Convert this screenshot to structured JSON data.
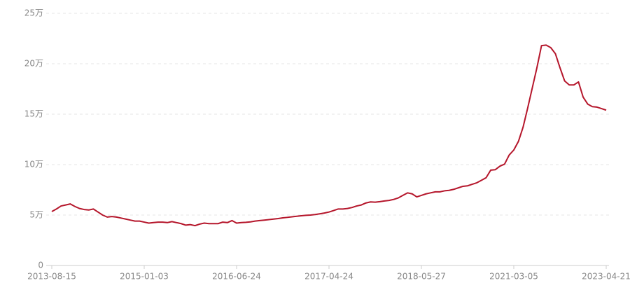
{
  "chart_data": {
    "type": "line",
    "categories": [
      "2013-08-15",
      null,
      null,
      null,
      null,
      null,
      null,
      null,
      null,
      null,
      null,
      null,
      null,
      null,
      null,
      null,
      null,
      null,
      null,
      null,
      "2015-01-03",
      null,
      null,
      null,
      null,
      null,
      null,
      null,
      null,
      null,
      null,
      null,
      null,
      null,
      null,
      null,
      null,
      null,
      null,
      null,
      "2016-06-24",
      null,
      null,
      null,
      null,
      null,
      null,
      null,
      null,
      null,
      null,
      null,
      null,
      null,
      null,
      null,
      null,
      null,
      null,
      null,
      "2017-04-24",
      null,
      null,
      null,
      null,
      null,
      null,
      null,
      null,
      null,
      null,
      null,
      null,
      null,
      null,
      null,
      null,
      null,
      null,
      null,
      "2018-05-27",
      null,
      null,
      null,
      null,
      null,
      null,
      null,
      null,
      null,
      null,
      null,
      null,
      null,
      null,
      null,
      null,
      null,
      null,
      null,
      "2021-03-05",
      null,
      null,
      null,
      null,
      null,
      null,
      null,
      null,
      null,
      null,
      null,
      null,
      null,
      null,
      null,
      null,
      null,
      null,
      null,
      "2023-04-21"
    ],
    "series": [
      {
        "color": "#b5162b",
        "values": [
          5.35,
          5.6,
          5.9,
          6.0,
          6.1,
          5.85,
          5.65,
          5.55,
          5.5,
          5.6,
          5.3,
          5.0,
          4.8,
          4.85,
          4.8,
          4.7,
          4.6,
          4.5,
          4.4,
          4.4,
          4.3,
          4.2,
          4.25,
          4.3,
          4.3,
          4.25,
          4.35,
          4.25,
          4.15,
          4.0,
          4.05,
          3.95,
          4.1,
          4.2,
          4.15,
          4.15,
          4.15,
          4.3,
          4.25,
          4.45,
          4.2,
          4.25,
          4.28,
          4.32,
          4.4,
          4.45,
          4.5,
          4.55,
          4.6,
          4.65,
          4.72,
          4.77,
          4.83,
          4.88,
          4.93,
          4.97,
          5.0,
          5.05,
          5.12,
          5.2,
          5.3,
          5.45,
          5.6,
          5.6,
          5.65,
          5.75,
          5.9,
          6.0,
          6.2,
          6.3,
          6.28,
          6.33,
          6.4,
          6.45,
          6.55,
          6.7,
          6.95,
          7.2,
          7.1,
          6.8,
          6.95,
          7.1,
          7.2,
          7.3,
          7.3,
          7.4,
          7.45,
          7.55,
          7.7,
          7.85,
          7.9,
          8.05,
          8.2,
          8.45,
          8.7,
          9.45,
          9.5,
          9.85,
          10.05,
          10.95,
          11.45,
          12.3,
          13.7,
          15.6,
          17.6,
          19.6,
          21.8,
          21.85,
          21.6,
          21.0,
          19.6,
          18.3,
          17.9,
          17.9,
          18.2,
          16.7,
          16.0,
          15.75,
          15.7,
          15.55,
          15.4
        ]
      }
    ],
    "ylim": [
      0,
      25
    ],
    "yticks": [
      0,
      {
        "value": 5,
        "label": "5万"
      },
      {
        "value": 10,
        "label": "10万"
      },
      {
        "value": 15,
        "label": "15万"
      },
      {
        "value": 20,
        "label": "20万"
      },
      {
        "value": 25,
        "label": "25万"
      }
    ],
    "grid": true
  }
}
